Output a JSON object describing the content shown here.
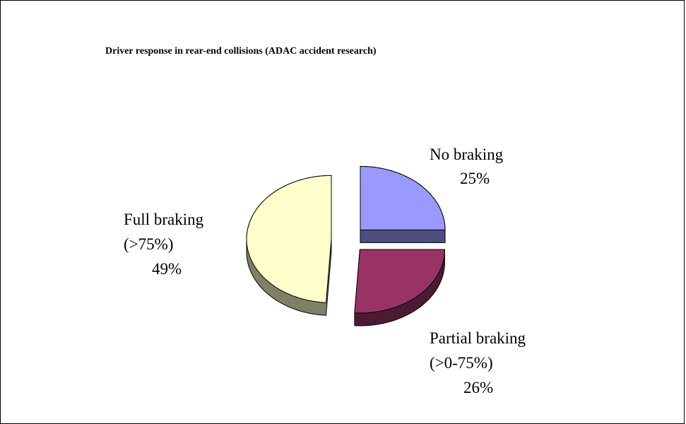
{
  "chart_data": {
    "type": "pie",
    "title": "Driver response in rear-end collisions (ADAC accident research)",
    "categories": [
      "No braking",
      "Partial braking (>0-75%)",
      "Full braking (>75%)"
    ],
    "values": [
      25,
      26,
      49
    ],
    "value_labels": [
      "25%",
      "26%",
      "49%"
    ],
    "colors": [
      "#9999ff",
      "#993366",
      "#ffffcc"
    ],
    "side_colors": [
      "#4d4d80",
      "#4d1a33",
      "#808066"
    ]
  }
}
